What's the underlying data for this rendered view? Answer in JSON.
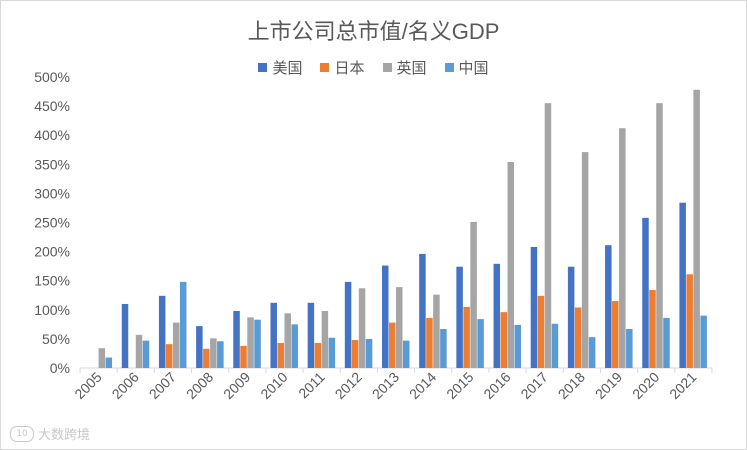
{
  "chart_data": {
    "type": "bar",
    "title": "上市公司总市值/名义GDP",
    "categories": [
      "2005",
      "2006",
      "2007",
      "2008",
      "2009",
      "2010",
      "2011",
      "2012",
      "2013",
      "2014",
      "2015",
      "2016",
      "2017",
      "2018",
      "2019",
      "2020",
      "2021"
    ],
    "yticks": [
      "0%",
      "50%",
      "100%",
      "150%",
      "200%",
      "250%",
      "300%",
      "350%",
      "400%",
      "450%",
      "500%"
    ],
    "ylim": [
      0,
      500
    ],
    "legend_position": "top-center",
    "grid": false,
    "series": [
      {
        "name": "美国",
        "color": "#4472c4",
        "values": [
          null,
          110,
          124,
          72,
          98,
          112,
          112,
          148,
          176,
          196,
          174,
          179,
          208,
          174,
          211,
          258,
          284
        ]
      },
      {
        "name": "日本",
        "color": "#ed7d31",
        "values": [
          null,
          null,
          41,
          33,
          38,
          43,
          43,
          48,
          78,
          86,
          105,
          96,
          124,
          104,
          115,
          134,
          161
        ]
      },
      {
        "name": "英国",
        "color": "#a5a5a5",
        "values": [
          34,
          57,
          78,
          51,
          87,
          94,
          98,
          137,
          139,
          126,
          251,
          354,
          455,
          371,
          412,
          455,
          478
        ]
      },
      {
        "name": "中国",
        "color": "#5b9bd5",
        "values": [
          18,
          47,
          148,
          46,
          83,
          75,
          52,
          50,
          47,
          67,
          84,
          74,
          76,
          53,
          67,
          86,
          90
        ]
      }
    ]
  },
  "watermark": {
    "logo_text": "10",
    "text": "大数跨境"
  }
}
